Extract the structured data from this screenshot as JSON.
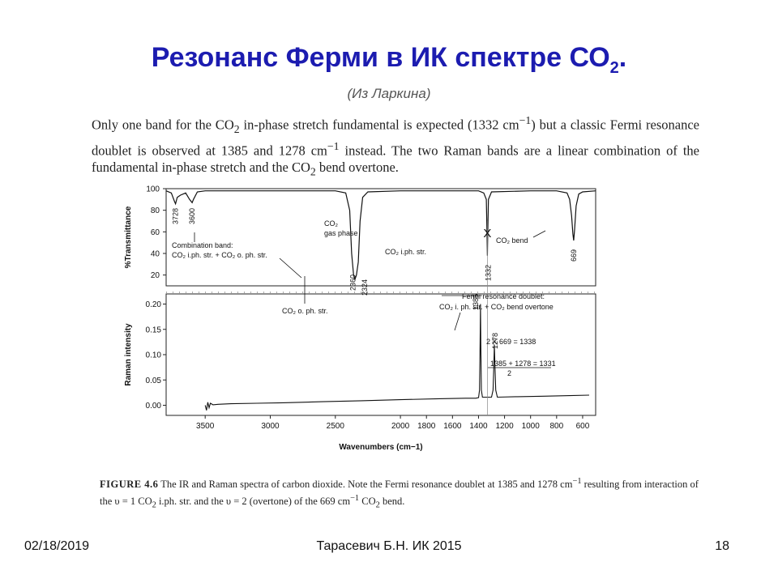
{
  "slide": {
    "title_main": "Резонанс Ферми  в ИК спектре СО",
    "title_sub": "2",
    "title_end": ".",
    "subtitle": "(Из Ларкина)",
    "paragraph": {
      "p1": "Only one band for the CO",
      "p1_sub": "2",
      "p2": " in-phase stretch fundamental is expected (1332 cm",
      "p2_sup": "−1",
      "p3": ") but a classic Fermi resonance doublet is observed at 1385 and 1278 cm",
      "p3_sup": "−1",
      "p4": " instead. The two Raman bands are a linear combination of the fundamental in-phase stretch and the CO",
      "p4_sub": "2",
      "p5": " bend overtone."
    },
    "caption": {
      "label": "FIGURE 4.6",
      "c1": "  The IR and Raman spectra of carbon dioxide. Note the Fermi resonance doublet at 1385 and 1278 cm",
      "c1_sup": "−1",
      "c2": " resulting from interaction of the υ = 1 CO",
      "c2_sub": "2",
      "c3": " i.ph. str. and the υ = 2 (overtone) of the 669 cm",
      "c3_sup": "−1",
      "c4": " CO",
      "c4_sub": "2",
      "c5": " bend."
    },
    "footer": {
      "date": "02/18/2019",
      "author": "Тарасевич Б.Н.  ИК 2015",
      "page": "18"
    }
  },
  "chart_data": {
    "type": "line",
    "xlabel": "Wavenumbers (cm−1)",
    "xlim": [
      3800,
      500
    ],
    "x_reversed": true,
    "x_ticks": [
      3500,
      3000,
      2500,
      2000,
      1800,
      1600,
      1400,
      1200,
      1000,
      800,
      600
    ],
    "x_tick_labels": [
      "3500",
      "3000",
      "2500",
      "2000",
      "1800",
      "1600",
      "1400",
      "1200",
      "1000",
      "800",
      "600"
    ],
    "ir": {
      "ylabel": "%Transmittance",
      "ylim": [
        10,
        100
      ],
      "y_ticks": [
        20,
        40,
        60,
        80,
        100
      ],
      "y_tick_labels": [
        "20",
        "40",
        "60",
        "80",
        "100"
      ],
      "x": [
        3800,
        3760,
        3735,
        3728,
        3715,
        3690,
        3650,
        3620,
        3600,
        3590,
        3560,
        3500,
        3000,
        2500,
        2420,
        2390,
        2375,
        2360,
        2349,
        2338,
        2324,
        2310,
        2290,
        2250,
        2000,
        1600,
        1400,
        1360,
        1340,
        1335,
        1332,
        1329,
        1324,
        1300,
        1000,
        800,
        720,
        700,
        685,
        675,
        669,
        662,
        650,
        630,
        600,
        500
      ],
      "y": [
        98,
        96,
        88,
        86,
        92,
        94,
        96,
        90,
        87,
        90,
        97,
        98,
        98,
        98,
        96,
        80,
        40,
        20,
        16,
        20,
        32,
        70,
        92,
        97,
        98,
        98,
        98,
        96,
        90,
        60,
        38,
        60,
        90,
        97,
        98,
        98,
        96,
        90,
        75,
        58,
        52,
        62,
        84,
        95,
        97,
        98
      ]
    },
    "raman": {
      "ylabel": "Raman intensity",
      "ylim": [
        -0.02,
        0.22
      ],
      "y_ticks": [
        0.0,
        0.05,
        0.1,
        0.15,
        0.2
      ],
      "y_tick_labels": [
        "0.00",
        "0.05",
        "0.10",
        "0.15",
        "0.20"
      ],
      "x": [
        3500,
        3490,
        3480,
        3470,
        3460,
        3440,
        3400,
        3300,
        3100,
        2900,
        2600,
        2300,
        2000,
        1700,
        1500,
        1420,
        1400,
        1392,
        1388,
        1385,
        1382,
        1378,
        1370,
        1330,
        1300,
        1288,
        1282,
        1278,
        1274,
        1268,
        1255,
        1100,
        900,
        700,
        550
      ],
      "y": [
        0.0,
        -0.01,
        0.006,
        -0.005,
        0.004,
        0.001,
        0.002,
        0.003,
        0.004,
        0.005,
        0.007,
        0.009,
        0.011,
        0.013,
        0.014,
        0.014,
        0.015,
        0.03,
        0.12,
        0.2,
        0.12,
        0.03,
        0.016,
        0.016,
        0.016,
        0.03,
        0.08,
        0.12,
        0.08,
        0.03,
        0.016,
        0.017,
        0.018,
        0.019,
        0.02
      ]
    },
    "annotations": {
      "ir_3728": "3728",
      "ir_3600": "3600",
      "ir_2360": "2360",
      "ir_2324": "2324",
      "ir_1332": "1332",
      "ir_669": "669",
      "co2_gas_line1": "CO₂",
      "co2_gas_line2": "gas phase",
      "combination_line1": "Combination band:",
      "combination_line2": "CO₂ i.ph. str. + CO₂ o. ph. str.",
      "co2_iph": "CO₂ i.ph. str.",
      "co2_bend": "CO₂ bend",
      "co2_oph": "CO₂ o. ph. str.",
      "raman_1385": "1385",
      "raman_1278": "1278",
      "fermi_line1": "Fermi resonance doublet:",
      "fermi_line2": "CO₂ i. ph. str. + CO₂ bend overtone",
      "calc1": "2 X 669 = 1338",
      "calc2": "1385 + 1278 = 1331",
      "calc2_den": "2",
      "cross_mark": "X"
    }
  }
}
